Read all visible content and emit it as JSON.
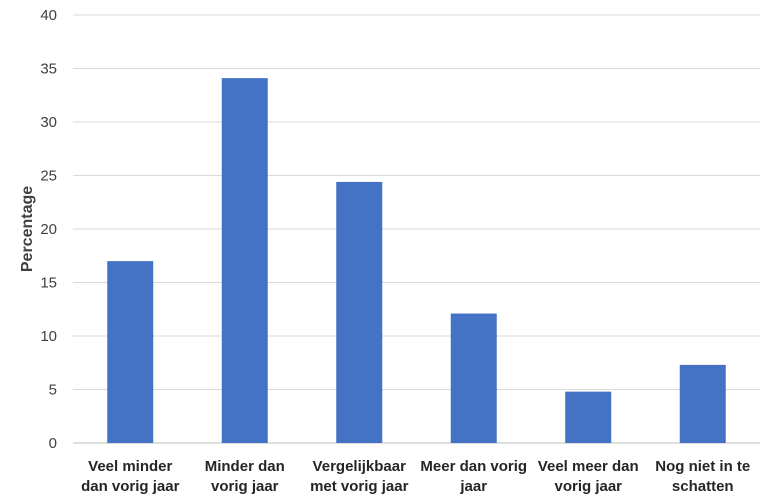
{
  "chart_data": {
    "type": "bar",
    "categories": [
      [
        "Veel minder",
        "dan vorig jaar"
      ],
      [
        "Minder dan",
        "vorig jaar"
      ],
      [
        "Vergelijkbaar",
        "met vorig jaar"
      ],
      [
        "Meer dan vorig",
        "jaar"
      ],
      [
        "Veel meer dan",
        "vorig jaar"
      ],
      [
        "Nog niet in te",
        "schatten"
      ]
    ],
    "values": [
      17.0,
      34.1,
      24.4,
      12.1,
      4.8,
      7.3
    ],
    "ylabel": "Percentage",
    "xlabel": "",
    "ylim": [
      0,
      40
    ],
    "yticks": [
      0,
      5,
      10,
      15,
      20,
      25,
      30,
      35,
      40
    ],
    "grid": true,
    "bar_color": "#4472C4",
    "grid_color": "#D9D9D9"
  }
}
